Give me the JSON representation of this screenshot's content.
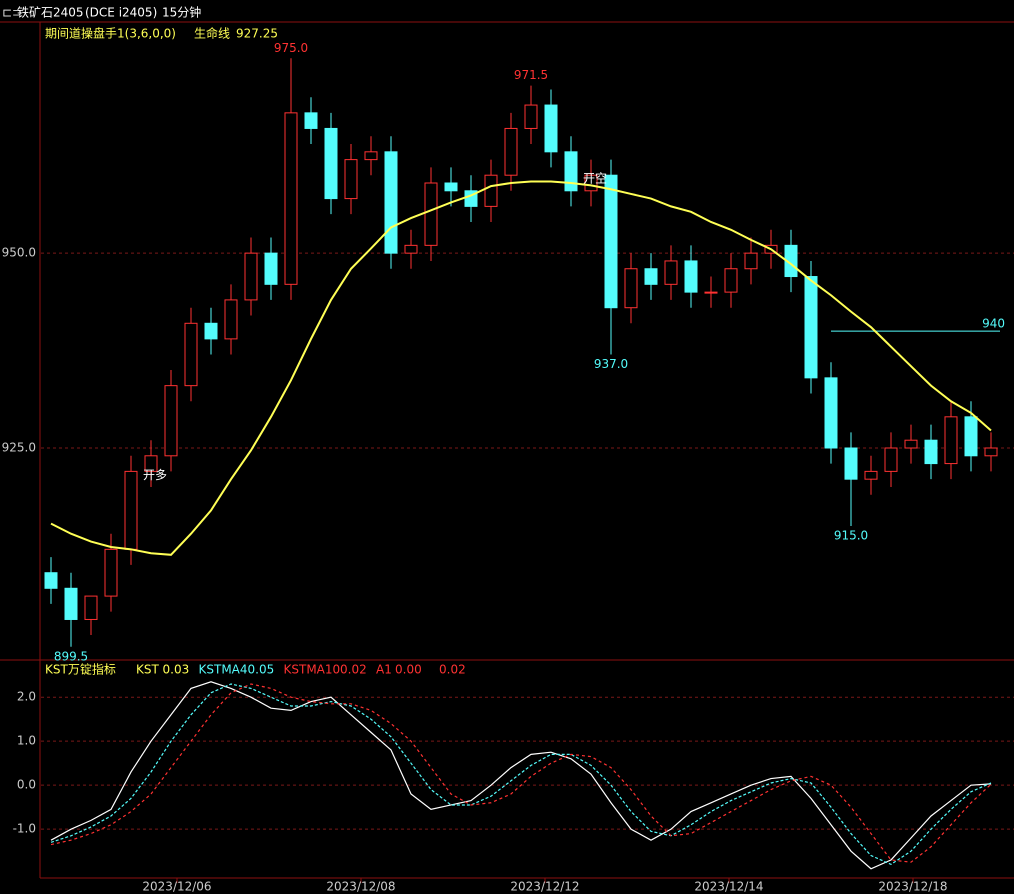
{
  "header": {
    "symbol": "铁矿石2405",
    "code": "(DCE i2405)",
    "period": "15分钟"
  },
  "chart_data": [
    {
      "type": "candlestick",
      "indicator": "期间道操盘手1(3,6,0,0)",
      "ma_name": "生命线",
      "ma_value": 927.25,
      "up_color": "#ff3232",
      "down_color": "#54fcfc",
      "ma_color": "#ffff55",
      "ylim": [
        897.8,
        979.4
      ],
      "yticks": [
        {
          "value": 925,
          "label": "925.0"
        },
        {
          "value": 950,
          "label": "950.0"
        }
      ],
      "open": [
        909,
        907,
        903,
        906,
        912,
        922,
        924,
        933,
        941,
        939,
        944,
        950,
        946,
        968,
        966,
        957,
        962,
        963,
        950,
        951,
        959,
        958,
        956,
        960,
        966,
        969,
        963,
        958,
        960,
        943,
        948,
        946,
        949,
        945,
        945,
        948,
        950,
        951,
        947,
        934,
        925,
        921,
        922,
        925,
        926,
        923,
        929,
        924
      ],
      "high": [
        911,
        909,
        906,
        914,
        924,
        926,
        935,
        943,
        943,
        946,
        952,
        952,
        975,
        970,
        968,
        964,
        965,
        965,
        953,
        961,
        961,
        960,
        962,
        968,
        971.5,
        971,
        965,
        962,
        962,
        950,
        950,
        951,
        951,
        947,
        950,
        952,
        953,
        953,
        949,
        936,
        927,
        924,
        927,
        928,
        928,
        931,
        931,
        927
      ],
      "low": [
        905,
        899.5,
        901,
        904,
        910,
        920,
        922,
        931,
        937,
        937,
        942,
        944,
        944,
        964,
        955,
        955,
        960,
        948,
        948,
        949,
        956,
        954,
        954,
        958,
        964,
        961,
        956,
        956,
        937,
        941,
        944,
        944,
        943,
        943,
        943,
        946,
        948,
        945,
        932,
        923,
        915,
        919,
        920,
        923,
        921,
        921,
        922,
        922
      ],
      "close": [
        907,
        903,
        906,
        912,
        922,
        924,
        933,
        941,
        939,
        944,
        950,
        946,
        968,
        966,
        957,
        962,
        963,
        950,
        951,
        959,
        958,
        956,
        960,
        966,
        969,
        963,
        958,
        960,
        943,
        948,
        946,
        949,
        945,
        945,
        948,
        950,
        951,
        947,
        934,
        925,
        921,
        922,
        925,
        926,
        923,
        929,
        924,
        925
      ],
      "ma": [
        915.3,
        914,
        913,
        912.3,
        912,
        911.5,
        911.3,
        914,
        917,
        921,
        924.7,
        929,
        933.7,
        939,
        944,
        948,
        950.6,
        953.3,
        954.5,
        955.5,
        956.5,
        957.4,
        958.6,
        959,
        959.2,
        959.2,
        959,
        958.7,
        958.2,
        957.6,
        957,
        956,
        955.3,
        954,
        953,
        951.7,
        950.5,
        948.6,
        946.5,
        944.6,
        942.5,
        940.5,
        938,
        935.5,
        933,
        931,
        929.5,
        927.25
      ],
      "annotations": [
        {
          "index": 12,
          "value": 975,
          "label": "975.0",
          "color": "#ff3232",
          "side": "above"
        },
        {
          "index": 24,
          "value": 971.5,
          "label": "971.5",
          "color": "#ff3232",
          "side": "above"
        },
        {
          "index": 28,
          "value": 937,
          "label": "937.0",
          "color": "#54fcfc",
          "side": "below"
        },
        {
          "index": 40,
          "value": 915,
          "label": "915.0",
          "color": "#54fcfc",
          "side": "below"
        },
        {
          "index": 1,
          "value": 899.5,
          "label": "899.5",
          "color": "#54fcfc",
          "side": "below"
        }
      ],
      "signals": [
        {
          "index": 5,
          "value": 922,
          "label": "开多"
        },
        {
          "index": 27,
          "value": 960,
          "label": "开空"
        }
      ],
      "levels": [
        {
          "from": 39,
          "value": 940,
          "color": "#54fcfc"
        }
      ]
    },
    {
      "type": "line",
      "indicator": "KST万锭指标",
      "ylim": [
        -2.11,
        2.8
      ],
      "yticks": [
        {
          "value": -1,
          "label": "-1.0"
        },
        {
          "value": 0,
          "label": "0.0"
        },
        {
          "value": 1,
          "label": "1.0"
        },
        {
          "value": 2,
          "label": "2.0"
        }
      ],
      "xlim": [
        -0.5,
        47.5
      ],
      "xticks": [
        {
          "value": 6.3,
          "label": "2023/12/06"
        },
        {
          "value": 15.5,
          "label": "2023/12/08"
        },
        {
          "value": 24.7,
          "label": "2023/12/12"
        },
        {
          "value": 33.9,
          "label": "2023/12/14"
        },
        {
          "value": 43.1,
          "label": "2023/12/18"
        }
      ],
      "series": [
        {
          "name": "KST",
          "color": "#ffffff",
          "legend_color": "#ffff55",
          "values": [
            -1.25,
            -1.0,
            -0.8,
            -0.55,
            0.3,
            1.0,
            1.6,
            2.2,
            2.35,
            2.2,
            2.0,
            1.75,
            1.7,
            1.9,
            2.0,
            1.6,
            1.2,
            0.8,
            -0.2,
            -0.55,
            -0.45,
            -0.35,
            0.0,
            0.4,
            0.7,
            0.75,
            0.6,
            0.25,
            -0.4,
            -1.0,
            -1.25,
            -1.0,
            -0.6,
            -0.4,
            -0.2,
            0.0,
            0.15,
            0.2,
            -0.3,
            -0.9,
            -1.5,
            -1.9,
            -1.7,
            -1.2,
            -0.7,
            -0.35,
            0.0,
            0.03
          ]
        },
        {
          "name": "KSTMA4",
          "color": "#54fcfc",
          "legend_color": "#54fcfc",
          "values": [
            -1.3,
            -1.15,
            -0.95,
            -0.7,
            -0.3,
            0.3,
            1.0,
            1.6,
            2.1,
            2.3,
            2.2,
            2.0,
            1.8,
            1.8,
            1.9,
            1.8,
            1.5,
            1.1,
            0.5,
            -0.1,
            -0.45,
            -0.45,
            -0.25,
            0.1,
            0.45,
            0.7,
            0.7,
            0.45,
            0.0,
            -0.6,
            -1.05,
            -1.15,
            -0.9,
            -0.6,
            -0.35,
            -0.15,
            0.05,
            0.15,
            0.05,
            -0.5,
            -1.1,
            -1.6,
            -1.8,
            -1.5,
            -1.0,
            -0.55,
            -0.15,
            0.05
          ]
        },
        {
          "name": "KSTMA10",
          "color": "#ff3232",
          "legend_color": "#ff3232",
          "values": [
            -1.35,
            -1.25,
            -1.1,
            -0.9,
            -0.6,
            -0.2,
            0.4,
            1.0,
            1.6,
            2.1,
            2.3,
            2.2,
            2.0,
            1.9,
            1.85,
            1.85,
            1.7,
            1.4,
            1.0,
            0.4,
            -0.2,
            -0.45,
            -0.4,
            -0.2,
            0.2,
            0.5,
            0.7,
            0.65,
            0.4,
            -0.1,
            -0.7,
            -1.15,
            -1.1,
            -0.85,
            -0.6,
            -0.35,
            -0.1,
            0.1,
            0.2,
            0.0,
            -0.5,
            -1.1,
            -1.7,
            -1.75,
            -1.4,
            -0.9,
            -0.4,
            0.02
          ]
        }
      ],
      "extra": [
        {
          "name": "A1",
          "value": 0,
          "label": "0.00"
        },
        {
          "value": 0.02
        }
      ]
    }
  ]
}
